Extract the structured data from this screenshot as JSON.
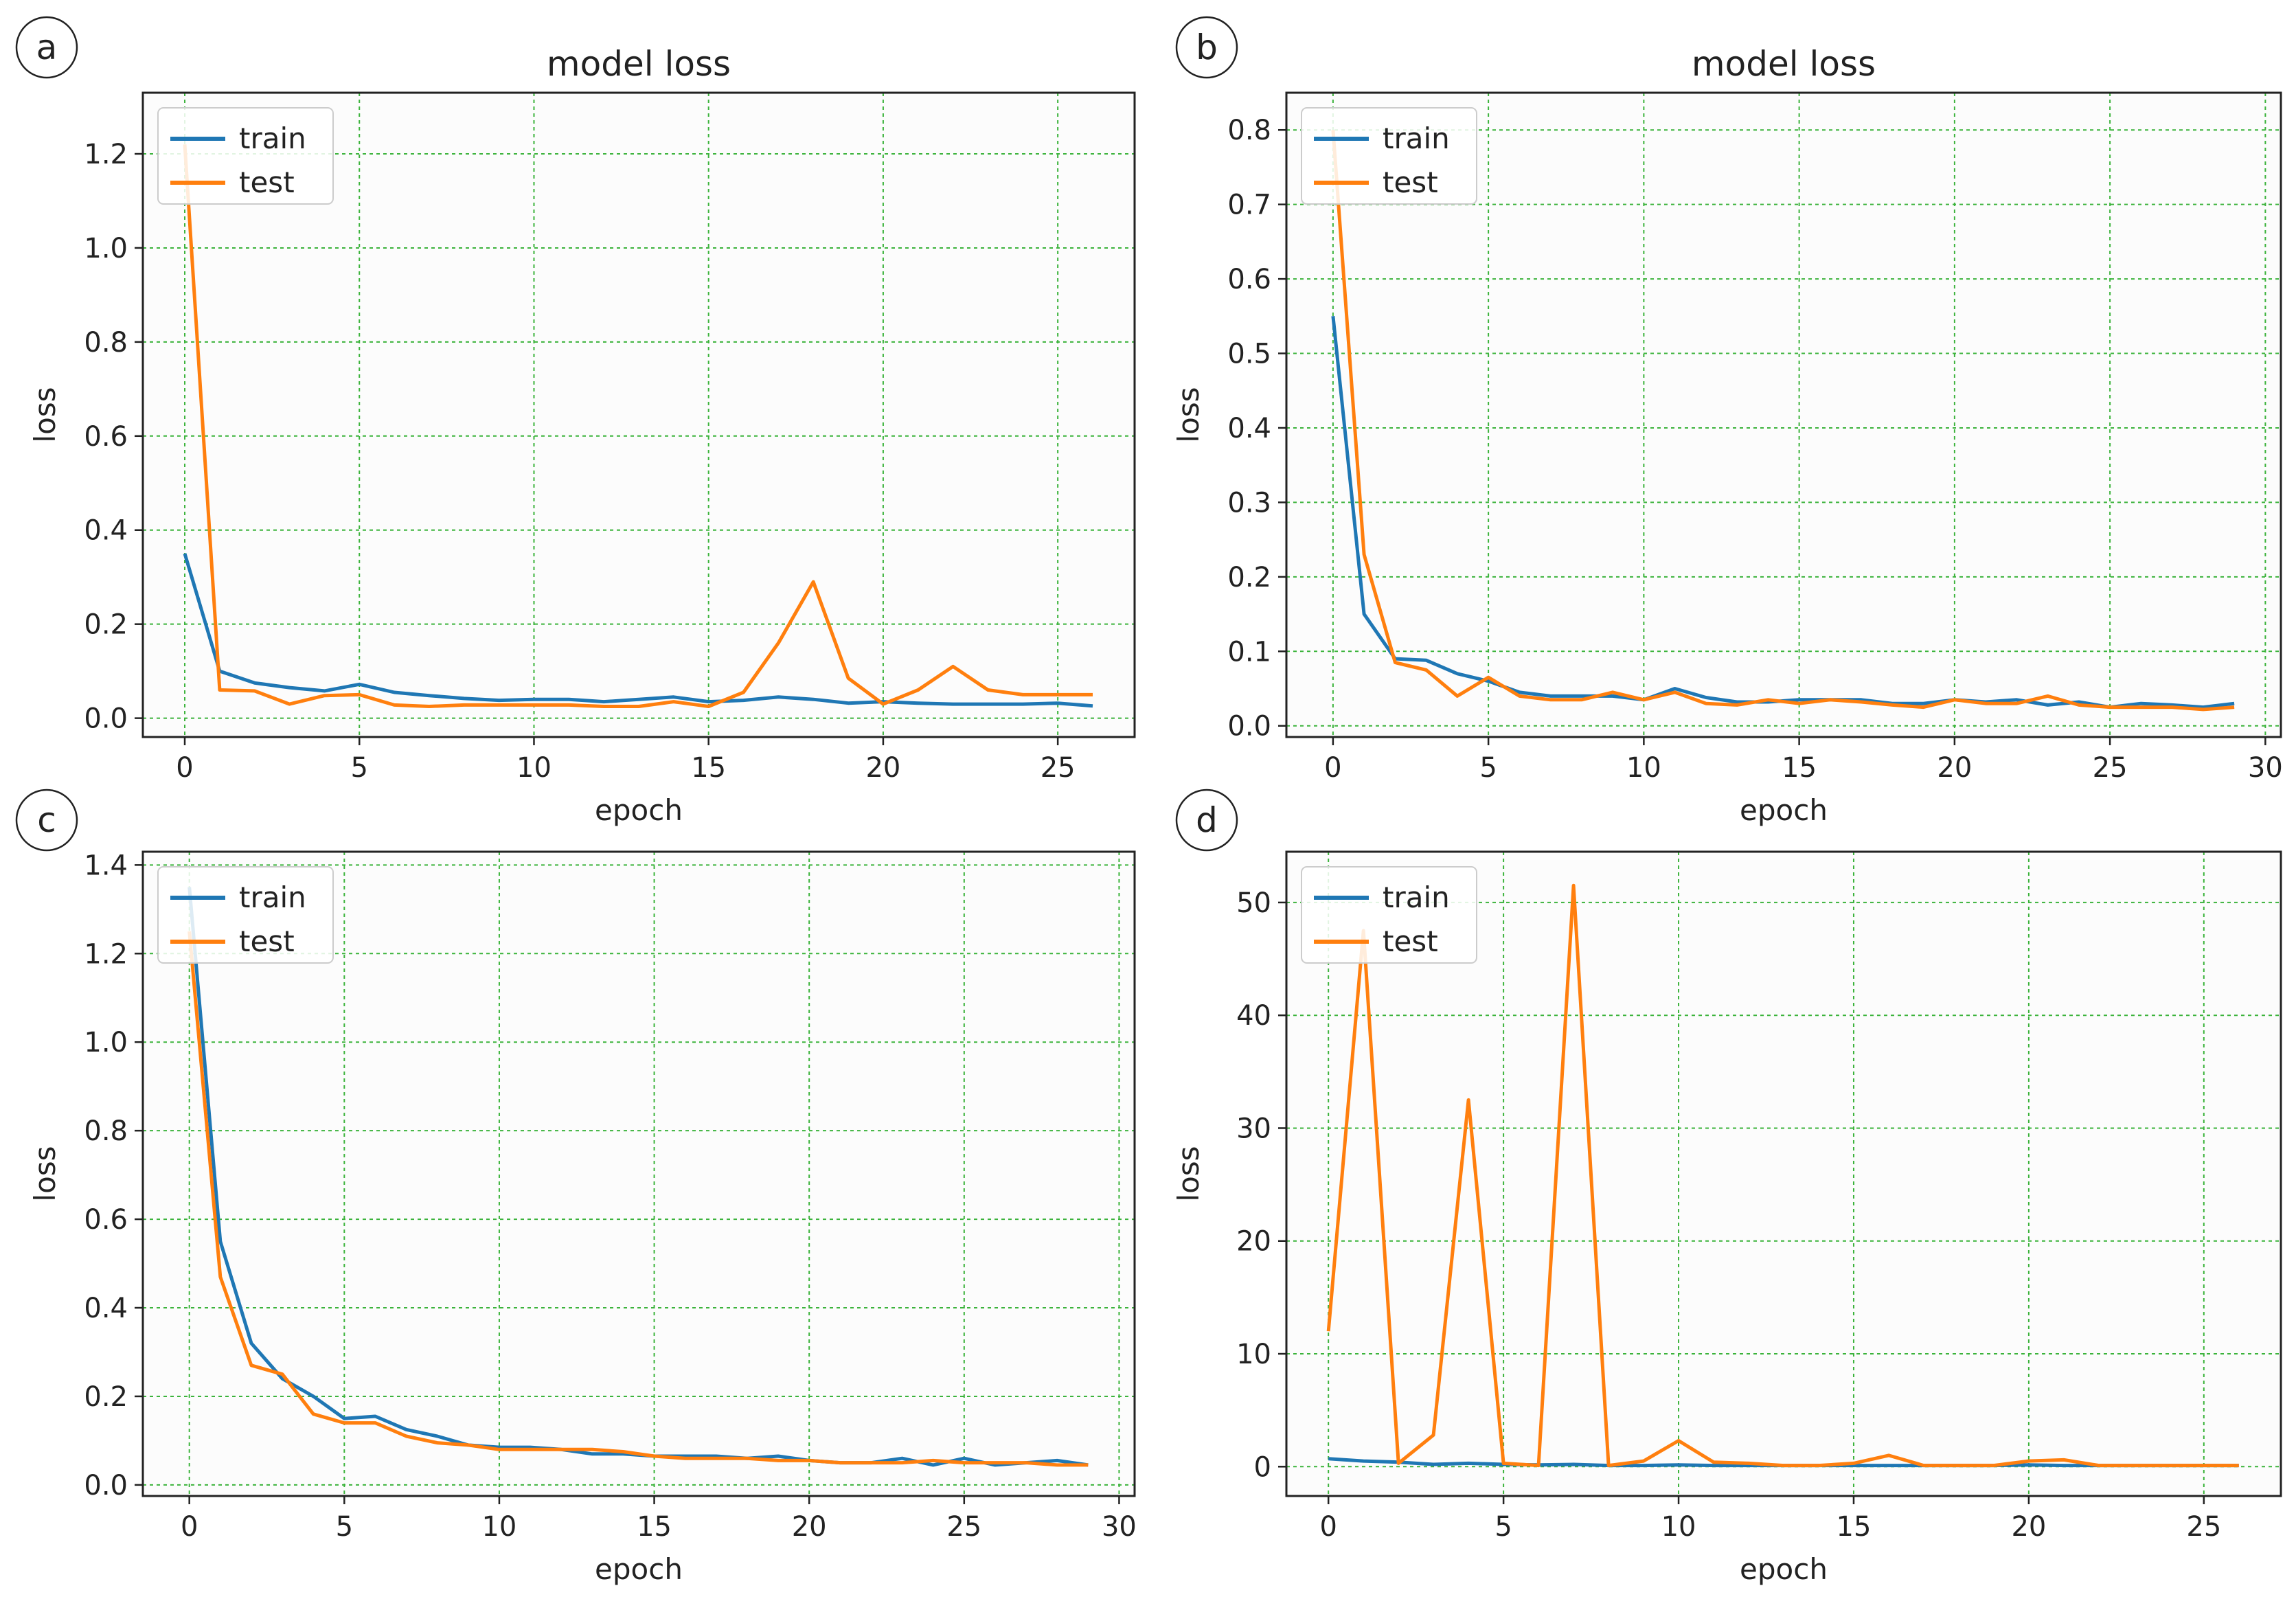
{
  "colors": {
    "train": "#1f77b4",
    "test": "#ff7f0e",
    "grid": "#3bb33b"
  },
  "chart_data": [
    {
      "panel": "a",
      "type": "line",
      "title": "model loss",
      "xlabel": "epoch",
      "ylabel": "loss",
      "xlim": [
        -1.2,
        27.2
      ],
      "ylim": [
        -0.04,
        1.33
      ],
      "xticks": [
        0,
        5,
        10,
        15,
        20,
        25
      ],
      "xtick_labels": [
        "0",
        "5",
        "10",
        "15",
        "20",
        "25"
      ],
      "yticks": [
        0.0,
        0.2,
        0.4,
        0.6,
        0.8,
        1.0,
        1.2
      ],
      "ytick_labels": [
        "0.0",
        "0.2",
        "0.4",
        "0.6",
        "0.8",
        "1.0",
        "1.2"
      ],
      "grid": true,
      "legend": "top-left",
      "x": [
        0,
        1,
        2,
        3,
        4,
        5,
        6,
        7,
        8,
        9,
        10,
        11,
        12,
        13,
        14,
        15,
        16,
        17,
        18,
        19,
        20,
        21,
        22,
        23,
        24,
        25,
        26
      ],
      "series": [
        {
          "name": "train",
          "values": [
            0.35,
            0.1,
            0.075,
            0.065,
            0.058,
            0.072,
            0.055,
            0.048,
            0.042,
            0.038,
            0.04,
            0.04,
            0.035,
            0.04,
            0.045,
            0.035,
            0.038,
            0.045,
            0.04,
            0.032,
            0.035,
            0.032,
            0.03,
            0.03,
            0.03,
            0.032,
            0.026
          ]
        },
        {
          "name": "test",
          "values": [
            1.22,
            0.06,
            0.058,
            0.03,
            0.048,
            0.05,
            0.028,
            0.025,
            0.028,
            0.028,
            0.028,
            0.028,
            0.025,
            0.025,
            0.035,
            0.025,
            0.055,
            0.16,
            0.29,
            0.085,
            0.03,
            0.06,
            0.11,
            0.06,
            0.05,
            0.05,
            0.05
          ]
        }
      ]
    },
    {
      "panel": "b",
      "type": "line",
      "title": "model loss",
      "xlabel": "epoch",
      "ylabel": "loss",
      "xlim": [
        -1.5,
        30.5
      ],
      "ylim": [
        -0.015,
        0.85
      ],
      "xticks": [
        0,
        5,
        10,
        15,
        20,
        25,
        30
      ],
      "xtick_labels": [
        "0",
        "5",
        "10",
        "15",
        "20",
        "25",
        "30"
      ],
      "yticks": [
        0.0,
        0.1,
        0.2,
        0.3,
        0.4,
        0.5,
        0.6,
        0.7,
        0.8
      ],
      "ytick_labels": [
        "0.0",
        "0.1",
        "0.2",
        "0.3",
        "0.4",
        "0.5",
        "0.6",
        "0.7",
        "0.8"
      ],
      "grid": true,
      "legend": "top-left",
      "x": [
        0,
        1,
        2,
        3,
        4,
        5,
        6,
        7,
        8,
        9,
        10,
        11,
        12,
        13,
        14,
        15,
        16,
        17,
        18,
        19,
        20,
        21,
        22,
        23,
        24,
        25,
        26,
        27,
        28,
        29
      ],
      "series": [
        {
          "name": "train",
          "values": [
            0.55,
            0.15,
            0.09,
            0.088,
            0.07,
            0.06,
            0.045,
            0.04,
            0.04,
            0.04,
            0.035,
            0.05,
            0.038,
            0.032,
            0.032,
            0.035,
            0.035,
            0.035,
            0.03,
            0.03,
            0.035,
            0.032,
            0.035,
            0.028,
            0.032,
            0.025,
            0.03,
            0.028,
            0.025,
            0.03
          ]
        },
        {
          "name": "test",
          "values": [
            0.8,
            0.23,
            0.085,
            0.075,
            0.04,
            0.065,
            0.04,
            0.035,
            0.035,
            0.045,
            0.035,
            0.045,
            0.03,
            0.028,
            0.035,
            0.03,
            0.035,
            0.032,
            0.028,
            0.025,
            0.035,
            0.03,
            0.03,
            0.04,
            0.028,
            0.025,
            0.025,
            0.025,
            0.022,
            0.025
          ]
        }
      ]
    },
    {
      "panel": "c",
      "type": "line",
      "title": "",
      "xlabel": "epoch",
      "ylabel": "loss",
      "xlim": [
        -1.5,
        30.5
      ],
      "ylim": [
        -0.025,
        1.43
      ],
      "xticks": [
        0,
        5,
        10,
        15,
        20,
        25,
        30
      ],
      "xtick_labels": [
        "0",
        "5",
        "10",
        "15",
        "20",
        "25",
        "30"
      ],
      "yticks": [
        0.0,
        0.2,
        0.4,
        0.6,
        0.8,
        1.0,
        1.2,
        1.4
      ],
      "ytick_labels": [
        "0.0",
        "0.2",
        "0.4",
        "0.6",
        "0.8",
        "1.0",
        "1.2",
        "1.4"
      ],
      "grid": true,
      "legend": "top-left",
      "x": [
        0,
        1,
        2,
        3,
        4,
        5,
        6,
        7,
        8,
        9,
        10,
        11,
        12,
        13,
        14,
        15,
        16,
        17,
        18,
        19,
        20,
        21,
        22,
        23,
        24,
        25,
        26,
        27,
        28,
        29
      ],
      "series": [
        {
          "name": "train",
          "values": [
            1.35,
            0.55,
            0.32,
            0.24,
            0.2,
            0.15,
            0.155,
            0.125,
            0.11,
            0.09,
            0.085,
            0.085,
            0.08,
            0.07,
            0.07,
            0.065,
            0.065,
            0.065,
            0.06,
            0.065,
            0.055,
            0.05,
            0.05,
            0.06,
            0.045,
            0.06,
            0.045,
            0.05,
            0.055,
            0.045
          ]
        },
        {
          "name": "test",
          "values": [
            1.25,
            0.47,
            0.27,
            0.25,
            0.16,
            0.14,
            0.14,
            0.11,
            0.095,
            0.09,
            0.08,
            0.08,
            0.08,
            0.08,
            0.075,
            0.065,
            0.06,
            0.06,
            0.06,
            0.055,
            0.055,
            0.05,
            0.05,
            0.05,
            0.055,
            0.05,
            0.05,
            0.05,
            0.045,
            0.045
          ]
        }
      ]
    },
    {
      "panel": "d",
      "type": "line",
      "title": "",
      "xlabel": "epoch",
      "ylabel": "loss",
      "xlim": [
        -1.2,
        27.2
      ],
      "ylim": [
        -2.6,
        54.5
      ],
      "xticks": [
        0,
        5,
        10,
        15,
        20,
        25
      ],
      "xtick_labels": [
        "0",
        "5",
        "10",
        "15",
        "20",
        "25"
      ],
      "yticks": [
        0,
        10,
        20,
        30,
        40,
        50
      ],
      "ytick_labels": [
        "0",
        "10",
        "20",
        "30",
        "40",
        "50"
      ],
      "grid": true,
      "legend": "top-left",
      "x": [
        0,
        1,
        2,
        3,
        4,
        5,
        6,
        7,
        8,
        9,
        10,
        11,
        12,
        13,
        14,
        15,
        16,
        17,
        18,
        19,
        20,
        21,
        22,
        23,
        24,
        25,
        26
      ],
      "series": [
        {
          "name": "train",
          "values": [
            0.7,
            0.5,
            0.4,
            0.2,
            0.3,
            0.2,
            0.15,
            0.2,
            0.1,
            0.1,
            0.15,
            0.1,
            0.1,
            0.1,
            0.1,
            0.1,
            0.1,
            0.1,
            0.1,
            0.1,
            0.15,
            0.1,
            0.1,
            0.1,
            0.1,
            0.1,
            0.1
          ]
        },
        {
          "name": "test",
          "values": [
            12,
            47.5,
            0.3,
            2.8,
            32.5,
            0.3,
            0.1,
            51.5,
            0.1,
            0.5,
            2.3,
            0.4,
            0.3,
            0.1,
            0.1,
            0.3,
            1.0,
            0.1,
            0.1,
            0.1,
            0.5,
            0.6,
            0.1,
            0.1,
            0.1,
            0.1,
            0.1
          ]
        }
      ]
    }
  ]
}
